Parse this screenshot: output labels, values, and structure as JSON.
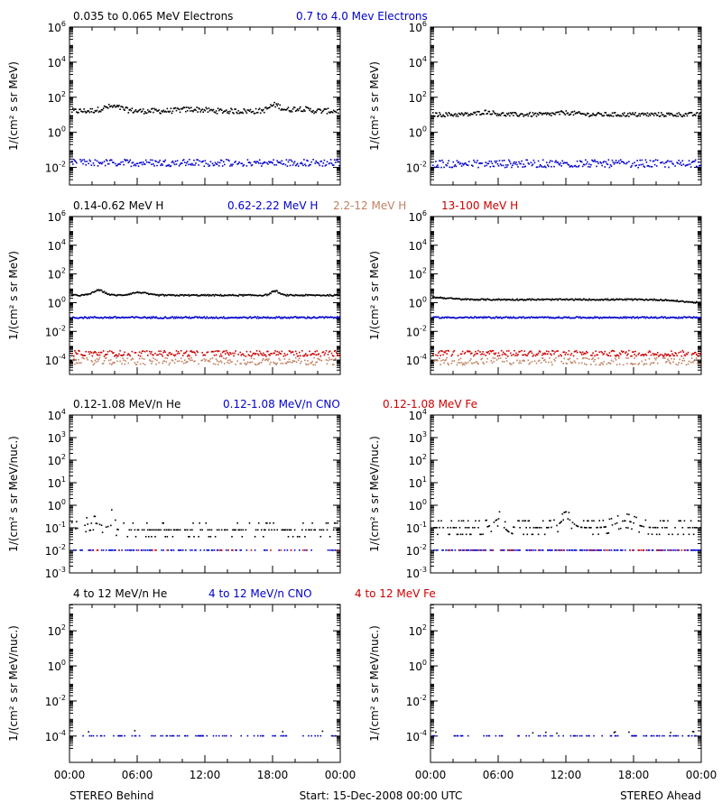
{
  "chart_data": {
    "type": "scatter",
    "x_ticks": [
      "00:00",
      "06:00",
      "12:00",
      "18:00",
      "00:00"
    ],
    "footer": {
      "left": "STEREO Behind",
      "center": "Start: 15-Dec-2008 00:00 UTC",
      "right": "STEREO Ahead"
    },
    "rows": [
      {
        "ylabel": "1/(cm² s sr MeV)",
        "log_ymin": -3,
        "log_ymax": 6,
        "tick_exponents": [
          -2,
          0,
          2,
          4,
          6
        ],
        "legend": [
          {
            "text": "0.035 to 0.065 MeV Electrons",
            "color": "#000000"
          },
          {
            "text": "0.7 to 4.0 Mev Electrons",
            "color": "#0000cc"
          }
        ],
        "panels": [
          {
            "side": "behind",
            "series": [
              {
                "color": "#000000",
                "log_center": 1.2,
                "jitter": 0.15,
                "density": 1.0,
                "bumps": [
                  [
                    0.15,
                    0.25,
                    0.05
                  ],
                  [
                    0.45,
                    0.1,
                    0.06
                  ],
                  [
                    0.76,
                    0.35,
                    0.03
                  ],
                  [
                    0.85,
                    0.15,
                    0.04
                  ]
                ]
              },
              {
                "color": "#0000cc",
                "log_center": -1.75,
                "jitter": 0.2,
                "density": 0.9,
                "bumps": []
              }
            ]
          },
          {
            "side": "ahead",
            "series": [
              {
                "color": "#000000",
                "log_center": 1.0,
                "jitter": 0.12,
                "density": 1.0,
                "bumps": [
                  [
                    0.2,
                    0.15,
                    0.04
                  ],
                  [
                    0.5,
                    0.1,
                    0.05
                  ]
                ]
              },
              {
                "color": "#0000cc",
                "log_center": -1.8,
                "jitter": 0.22,
                "density": 0.9,
                "bumps": []
              }
            ]
          }
        ]
      },
      {
        "ylabel": "1/(cm² s sr MeV)",
        "log_ymin": -5,
        "log_ymax": 6,
        "tick_exponents": [
          -4,
          -2,
          0,
          2,
          4,
          6
        ],
        "legend": [
          {
            "text": "0.14-0.62 MeV H",
            "color": "#000000"
          },
          {
            "text": "0.62-2.22 MeV H",
            "color": "#0000cc"
          },
          {
            "text": "2.2-12 MeV H",
            "color": "#c08060"
          },
          {
            "text": "13-100 MeV H",
            "color": "#cc0000"
          }
        ],
        "panels": [
          {
            "side": "behind",
            "series": [
              {
                "color": "#000000",
                "log_center": 0.5,
                "jitter": 0.05,
                "density": 1.0,
                "bumps": [
                  [
                    0.1,
                    0.35,
                    0.03
                  ],
                  [
                    0.25,
                    0.2,
                    0.04
                  ],
                  [
                    0.76,
                    0.3,
                    0.02
                  ]
                ]
              },
              {
                "color": "#0000cc",
                "log_center": -1.05,
                "jitter": 0.06,
                "density": 1.0,
                "bumps": []
              },
              {
                "color": "#c08060",
                "log_center": -4.1,
                "jitter": 0.25,
                "density": 0.7,
                "bumps": []
              },
              {
                "color": "#cc0000",
                "log_center": -3.55,
                "jitter": 0.2,
                "density": 0.8,
                "bumps": []
              }
            ]
          },
          {
            "side": "ahead",
            "series": [
              {
                "color": "#000000",
                "log_center": 0.2,
                "jitter": 0.05,
                "density": 1.0,
                "bumps": [
                  [
                    0.0,
                    0.15,
                    0.08
                  ],
                  [
                    1.0,
                    -0.2,
                    0.1
                  ]
                ]
              },
              {
                "color": "#0000cc",
                "log_center": -1.05,
                "jitter": 0.05,
                "density": 1.0,
                "bumps": []
              },
              {
                "color": "#c08060",
                "log_center": -4.1,
                "jitter": 0.25,
                "density": 0.7,
                "bumps": []
              },
              {
                "color": "#cc0000",
                "log_center": -3.55,
                "jitter": 0.2,
                "density": 0.8,
                "bumps": []
              }
            ]
          }
        ]
      },
      {
        "ylabel": "1/(cm² s sr MeV/nuc.)",
        "log_ymin": -3,
        "log_ymax": 4,
        "tick_exponents": [
          -3,
          -2,
          -1,
          0,
          1,
          2,
          3,
          4
        ],
        "legend": [
          {
            "text": "0.12-1.08 MeV/n He",
            "color": "#000000"
          },
          {
            "text": "0.12-1.08 MeV/n CNO",
            "color": "#0000cc"
          },
          {
            "text": "0.12-1.08 MeV Fe",
            "color": "#cc0000"
          }
        ],
        "panels": [
          {
            "side": "behind",
            "series": [
              {
                "color": "#000000",
                "log_center": -1.1,
                "jitter": 0.25,
                "density": 0.55,
                "quantized": 0.3,
                "bumps": [
                  [
                    0.08,
                    0.3,
                    0.05
                  ],
                  [
                    0.15,
                    0.55,
                    0.01
                  ]
                ]
              },
              {
                "color": "#0000cc",
                "log_center": -2.0,
                "jitter": 0.0,
                "density": 0.35,
                "bumps": []
              },
              {
                "color": "#cc0000",
                "log_center": -2.0,
                "jitter": 0.0,
                "density": 0.08,
                "bumps": []
              }
            ]
          },
          {
            "side": "ahead",
            "series": [
              {
                "color": "#000000",
                "log_center": -1.0,
                "jitter": 0.3,
                "density": 0.7,
                "quantized": 0.3,
                "bumps": [
                  [
                    0.25,
                    0.4,
                    0.03
                  ],
                  [
                    0.5,
                    0.4,
                    0.03
                  ],
                  [
                    0.72,
                    0.3,
                    0.05
                  ]
                ]
              },
              {
                "color": "#0000cc",
                "log_center": -2.0,
                "jitter": 0.0,
                "density": 0.5,
                "bumps": []
              },
              {
                "color": "#cc0000",
                "log_center": -2.0,
                "jitter": 0.0,
                "density": 0.1,
                "bumps": []
              }
            ]
          }
        ]
      },
      {
        "ylabel": "1/(cm² s sr MeV/nuc.)",
        "log_ymin": -5.5,
        "log_ymax": 3.5,
        "tick_exponents": [
          -4,
          -2,
          0,
          2
        ],
        "legend": [
          {
            "text": "4 to 12 MeV/n He",
            "color": "#000000"
          },
          {
            "text": "4 to 12 MeV/n CNO",
            "color": "#0000cc"
          },
          {
            "text": "4 to 12 MeV Fe",
            "color": "#cc0000"
          }
        ],
        "panels": [
          {
            "side": "behind",
            "series": [
              {
                "color": "#0000cc",
                "log_center": -4.0,
                "jitter": 0.0,
                "density": 0.25,
                "bumps": []
              },
              {
                "color": "#000000",
                "log_center": -3.75,
                "jitter": 0.05,
                "density": 0.01,
                "bumps": []
              }
            ]
          },
          {
            "side": "ahead",
            "series": [
              {
                "color": "#0000cc",
                "log_center": -4.0,
                "jitter": 0.0,
                "density": 0.25,
                "bumps": []
              },
              {
                "color": "#000000",
                "log_center": -3.8,
                "jitter": 0.05,
                "density": 0.01,
                "bumps": []
              }
            ]
          }
        ]
      }
    ]
  }
}
